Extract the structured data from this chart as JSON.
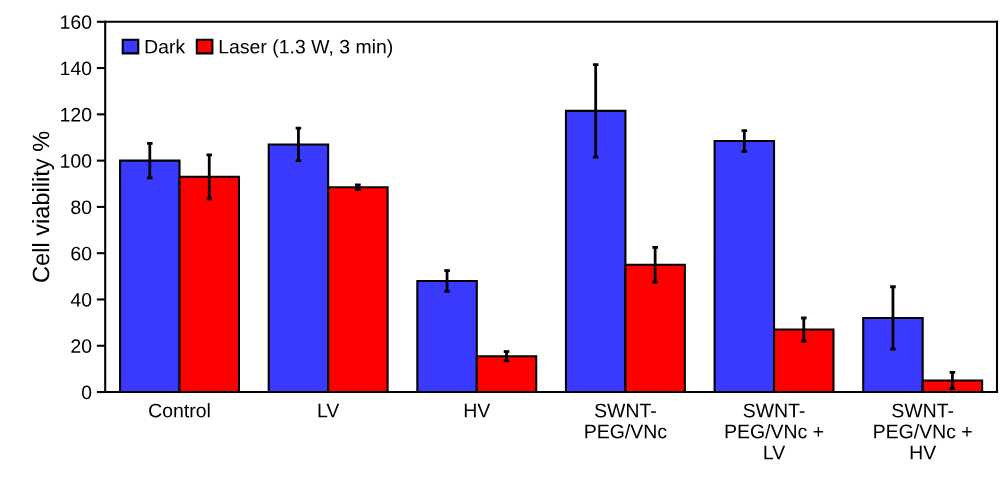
{
  "chart_data": {
    "type": "bar",
    "ylabel": "Cell viability %",
    "categories": [
      "Control",
      "LV",
      "HV",
      "SWNT-\nPEG/VNc",
      "SWNT-\nPEG/VNc +\nLV",
      "SWNT-\nPEG/VNc +\nHV"
    ],
    "series": [
      {
        "name": "Dark",
        "color": "#3a3aff",
        "values": [
          100,
          107,
          48,
          121.5,
          108.5,
          32
        ],
        "errors": [
          7.5,
          7,
          4.5,
          20,
          4.5,
          13.5
        ]
      },
      {
        "name": "Laser (1.3 W, 3 min)",
        "color": "#ff0000",
        "values": [
          93,
          88.5,
          15.5,
          55,
          27,
          5
        ],
        "errors": [
          9.5,
          1,
          2,
          7.5,
          5,
          3.5
        ]
      }
    ],
    "ylim": [
      0,
      160
    ],
    "yticks": [
      0,
      20,
      40,
      60,
      80,
      100,
      120,
      140,
      160
    ],
    "grid": false,
    "legend": "top left"
  }
}
